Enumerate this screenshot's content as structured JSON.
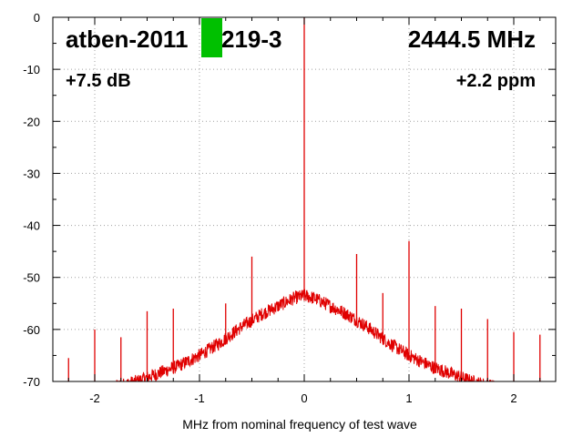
{
  "chart_data": {
    "type": "line",
    "xlabel": "MHz from nominal frequency of test wave",
    "ylabel": "",
    "xlim": [
      -2.4,
      2.4
    ],
    "ylim": [
      -70,
      0
    ],
    "x_ticks": [
      -2,
      -1,
      0,
      1,
      2
    ],
    "y_ticks": [
      0,
      -10,
      -20,
      -30,
      -40,
      -50,
      -60,
      -70
    ],
    "grid": true,
    "annotations": {
      "device": "atben-2011",
      "device_suffix": "219-3",
      "frequency": "2444.5 MHz",
      "gain": "+7.5 dB",
      "offset": "+2.2 ppm"
    },
    "series": [
      {
        "color": "#e00000",
        "envelope": {
          "x": [
            -2.4,
            -2.0,
            -1.6,
            -1.4,
            -1.2,
            -1.0,
            -0.8,
            -0.6,
            -0.4,
            -0.2,
            -0.1,
            0.0,
            0.1,
            0.2,
            0.4,
            0.6,
            0.8,
            1.0,
            1.2,
            1.4,
            1.6,
            1.8,
            2.0,
            2.4
          ],
          "y": [
            -72,
            -72,
            -70,
            -68.5,
            -67,
            -65,
            -62.5,
            -59.5,
            -57,
            -55,
            -54,
            -53.5,
            -54,
            -55,
            -57,
            -59.5,
            -62.5,
            -65,
            -67,
            -68.5,
            -70,
            -71,
            -72,
            -72
          ]
        },
        "spurs": [
          {
            "x": 0.0,
            "y": 0
          },
          {
            "x": -2.25,
            "y": -65.5
          },
          {
            "x": -2.0,
            "y": -60
          },
          {
            "x": -1.75,
            "y": -61.5
          },
          {
            "x": -1.5,
            "y": -56.5
          },
          {
            "x": -1.25,
            "y": -56
          },
          {
            "x": -0.75,
            "y": -55
          },
          {
            "x": -0.5,
            "y": -46
          },
          {
            "x": -0.25,
            "y": -56
          },
          {
            "x": 0.25,
            "y": -56
          },
          {
            "x": 0.5,
            "y": -45.5
          },
          {
            "x": 0.75,
            "y": -53
          },
          {
            "x": 1.0,
            "y": -43
          },
          {
            "x": 1.25,
            "y": -55.5
          },
          {
            "x": 1.5,
            "y": -56
          },
          {
            "x": 1.75,
            "y": -58
          },
          {
            "x": 2.0,
            "y": -60.5
          },
          {
            "x": 2.25,
            "y": -61
          }
        ]
      }
    ]
  },
  "colors": {
    "trace": "#e00000",
    "marker": "#00c000",
    "grid": "#a0a0a0"
  }
}
